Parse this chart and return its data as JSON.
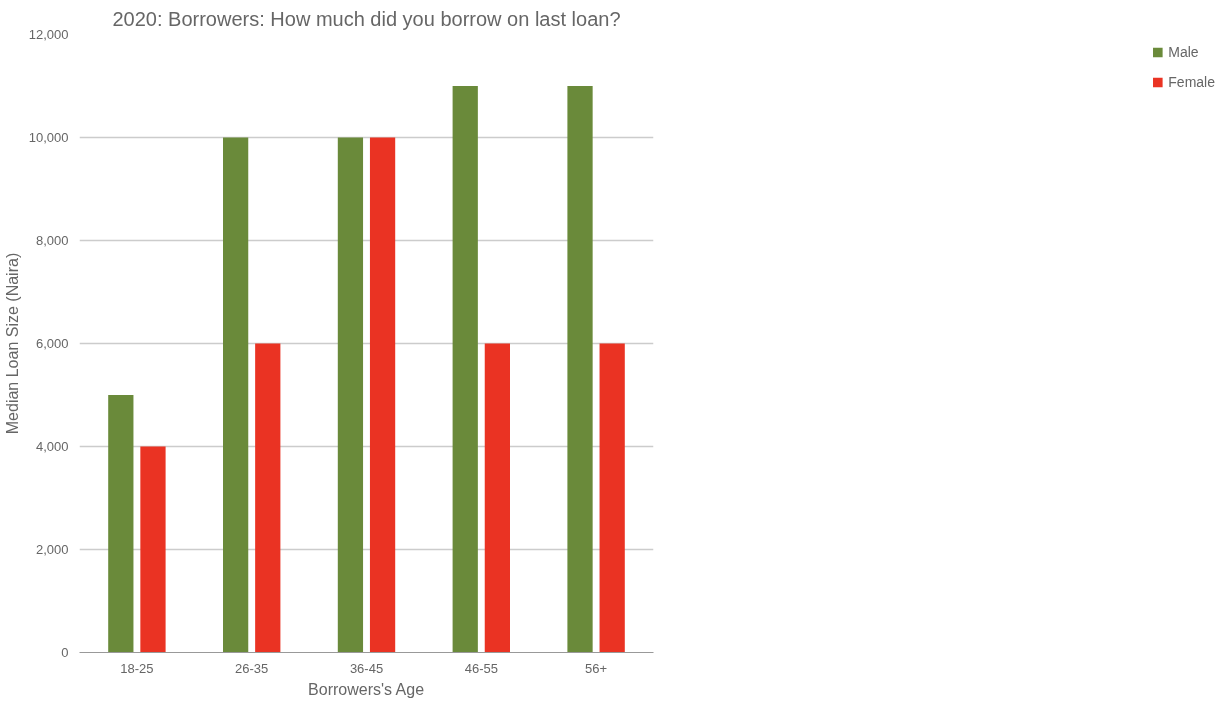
{
  "chart_data": {
    "type": "bar",
    "title": "2020: Borrowers: How much did you borrow on last loan?",
    "xlabel": "Borrowers's Age",
    "ylabel": "Median Loan Size (Naira)",
    "categories": [
      "18-25",
      "26-35",
      "36-45",
      "46-55",
      "56+"
    ],
    "series": [
      {
        "name": "Male",
        "color": "#6a8a3a",
        "values": [
          5000,
          10000,
          10000,
          11000,
          11000
        ]
      },
      {
        "name": "Female",
        "color": "#ea3323",
        "values": [
          4000,
          6000,
          10000,
          6000,
          6000
        ]
      }
    ],
    "ylim": [
      0,
      12000
    ],
    "yticks": [
      {
        "value": 0,
        "label": "0"
      },
      {
        "value": 2000,
        "label": "2,000"
      },
      {
        "value": 4000,
        "label": "4,000"
      },
      {
        "value": 6000,
        "label": "6,000"
      },
      {
        "value": 8000,
        "label": "8,000"
      },
      {
        "value": 10000,
        "label": "10,000"
      },
      {
        "value": 12000,
        "label": "12,000"
      }
    ],
    "grid": "y",
    "legend": "right"
  }
}
